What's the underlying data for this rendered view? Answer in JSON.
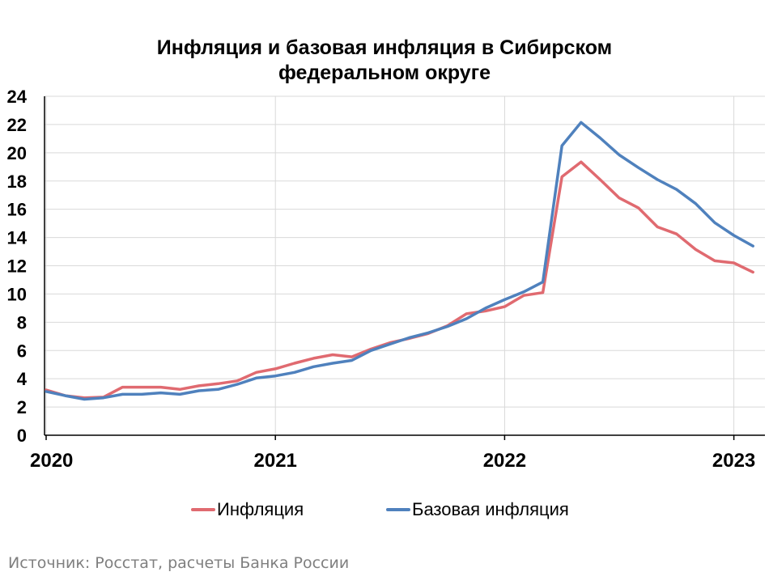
{
  "chart_data": {
    "type": "line",
    "title_lines": [
      "Инфляция и базовая инфляция в Сибирском",
      "федеральном округе"
    ],
    "xlabel": "",
    "ylabel": "",
    "ylim": [
      0,
      24
    ],
    "yticks": [
      0,
      2,
      4,
      6,
      8,
      10,
      12,
      14,
      16,
      18,
      20,
      22,
      24
    ],
    "x_start": "2020-01",
    "xtick_labels": [
      "2020",
      "2021",
      "2022",
      "2023"
    ],
    "grid": true,
    "legend_position": "bottom",
    "series": [
      {
        "name": "Инфляция",
        "color": "#e06a70",
        "values": [
          3.2,
          2.8,
          2.65,
          2.7,
          3.4,
          3.4,
          3.4,
          3.25,
          3.5,
          3.65,
          3.85,
          4.45,
          4.7,
          5.1,
          5.45,
          5.7,
          5.55,
          6.1,
          6.55,
          6.85,
          7.2,
          7.75,
          8.6,
          8.8,
          9.1,
          9.9,
          10.1,
          18.3,
          19.35,
          18.1,
          16.8,
          16.1,
          14.75,
          14.25,
          13.15,
          12.35,
          12.2,
          11.55
        ]
      },
      {
        "name": "Базовая инфляция",
        "color": "#4f81bd",
        "values": [
          3.1,
          2.8,
          2.55,
          2.65,
          2.9,
          2.9,
          3.0,
          2.9,
          3.15,
          3.25,
          3.6,
          4.05,
          4.2,
          4.45,
          4.85,
          5.1,
          5.3,
          6.0,
          6.45,
          6.9,
          7.25,
          7.7,
          8.25,
          9.0,
          9.6,
          10.15,
          10.85,
          20.5,
          22.15,
          21.05,
          19.85,
          18.95,
          18.1,
          17.4,
          16.4,
          15.05,
          14.15,
          13.4
        ]
      }
    ]
  },
  "legend": {
    "items": [
      "Инфляция",
      "Базовая инфляция"
    ]
  },
  "source_note": "Источник: Росстат, расчеты Банка России"
}
